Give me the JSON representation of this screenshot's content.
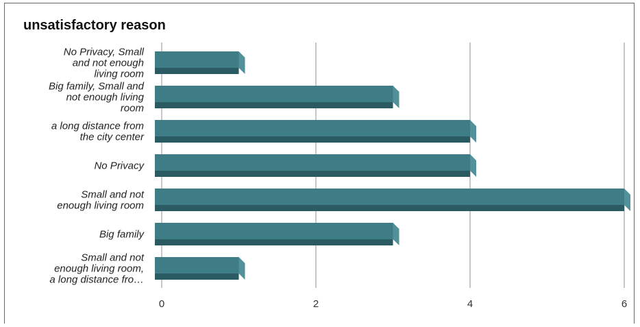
{
  "chart_data": {
    "type": "bar",
    "orientation": "horizontal",
    "title": "unsatisfactory reason",
    "categories": [
      [
        "No Privacy, Small",
        "and not enough",
        "living room"
      ],
      [
        "Big family, Small and",
        "not enough living",
        "room"
      ],
      [
        "a long distance from",
        "the city center"
      ],
      [
        "No Privacy"
      ],
      [
        "Small and not",
        "enough living room"
      ],
      [
        "Big family"
      ],
      [
        "Small and not",
        "enough living room,",
        "a long distance fro…"
      ]
    ],
    "values": [
      1,
      3,
      4,
      4,
      6,
      3,
      1
    ],
    "xlim": [
      0,
      6
    ],
    "xticks": [
      0,
      2,
      4,
      6
    ],
    "grid": true,
    "colors": {
      "bar_front": "#3e7d86",
      "bar_top": "#2f6770",
      "bar_bottom": "#2a5a62",
      "bar_side": "#52909a",
      "grid": "#c8c8c8"
    }
  }
}
